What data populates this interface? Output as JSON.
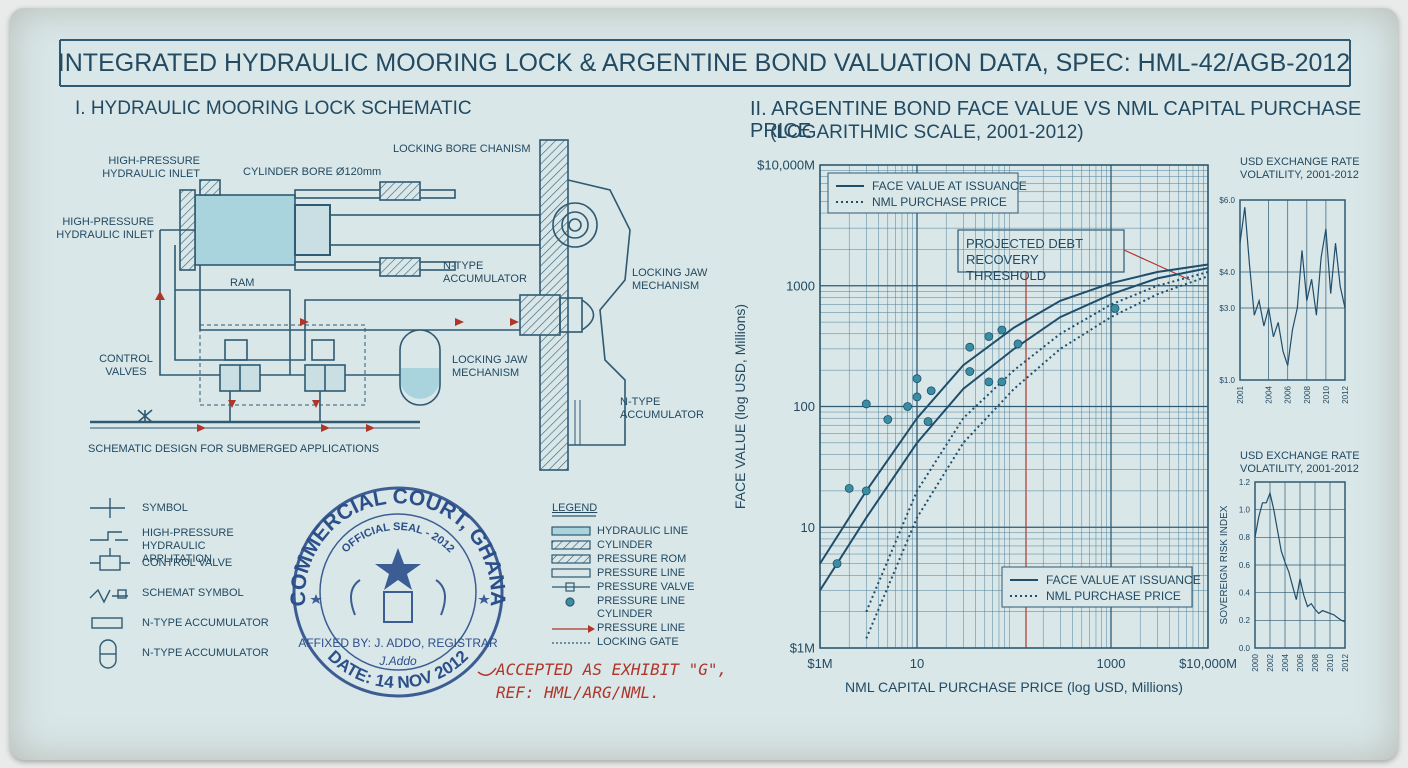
{
  "header": {
    "title": "INTEGRATED HYDRAULIC MOORING LOCK & ARGENTINE BOND VALUATION DATA, SPEC: HML-42/AGB-2012"
  },
  "schematic": {
    "heading": "I. HYDRAULIC MOORING LOCK SCHEMATIC",
    "labels": [
      "HIGH-PRESSURE HYDRAULIC INLET",
      "HIGH-PRESSURE HYDRAULIC INLET",
      "CYLINDER BORE Ø120mm",
      "LOCKING BORE CHANISM",
      "RAM",
      "N-TYPE ACCUMULATOR",
      "LOCKING JAW MECHANISM",
      "LOCKING JAW MECHANISM",
      "CONTROL VALVES",
      "N-TYPE ACCUMULATOR"
    ],
    "caption": "SCHEMATIC DESIGN FOR SUBMERGED APPLICATIONS"
  },
  "symbols": [
    "SYMBOL",
    "HIGH-PRESSURE HYDRAULIC APPLITATION",
    "CONTROL VALVE",
    "SCHEMAT SYMBOL",
    "N-TYPE ACCUMULATOR",
    "N-TYPE ACCUMULATOR"
  ],
  "legend": {
    "title": "LEGEND",
    "items": [
      "HYDRAULIC LINE",
      "CYLINDER",
      "PRESSURE ROM",
      "PRESSURE LINE",
      "PRESSURE VALVE",
      "PRESSURE LINE CYLINDER",
      "PRESSURE LINE",
      "LOCKING GATE"
    ]
  },
  "seal": {
    "ring_top": "COMMERCIAL COURT, GHANA",
    "ring_inner": "OFFICIAL SEAL - 2012",
    "affixed": "AFFIXED BY: J. ADDO, REGISTRAR",
    "signature": "J.Addo",
    "date": "DATE: 14 NOV 2012"
  },
  "exhibit_note": [
    "ACCEPTED AS EXHIBIT \"G\",",
    "REF: HML/ARG/NML."
  ],
  "section": {
    "title": "II. ARGENTINE BOND FACE VALUE VS NML CAPITAL PURCHASE PRICE",
    "subtitle": "(LOGARITHMIC SCALE, 2001-2012)"
  },
  "chart_data": [
    {
      "type": "line",
      "xlabel": "NML CAPITAL PURCHASE PRICE (log USD, Millions)",
      "ylabel": "FACE VALUE (log USD, Millions)",
      "log_x": true,
      "log_y": true,
      "grid": true,
      "minor_grid": true,
      "xlim": [
        1,
        10000
      ],
      "ylim": [
        1,
        10000
      ],
      "xticks": [
        {
          "value": 1,
          "label": "$1M"
        },
        10,
        1000,
        {
          "value": 10000,
          "label": "$10,000M"
        }
      ],
      "yticks": [
        {
          "value": 1,
          "label": "$1M"
        },
        10,
        100,
        1000,
        {
          "value": 10000,
          "label": "$10,000M"
        }
      ],
      "x": [
        1,
        3,
        10,
        30,
        100,
        300,
        1000,
        3000,
        10000
      ],
      "series": [
        {
          "name": "FACE VALUE AT ISSUANCE",
          "color": "#1f4e6b",
          "style": "solid",
          "values": [
            5,
            20,
            80,
            220,
            450,
            750,
            1050,
            1300,
            1500
          ]
        },
        {
          "name": "NML PURCHASE PRICE",
          "color": "#1f4e6b",
          "style": "dotted",
          "values": [
            null,
            2,
            20,
            80,
            200,
            400,
            700,
            1000,
            1300
          ]
        },
        {
          "name": "FACE VALUE AT ISSUANCE",
          "color": "#1f4e6b",
          "style": "solid",
          "values": [
            3,
            12,
            50,
            140,
            300,
            550,
            850,
            1150,
            1400
          ]
        },
        {
          "name": "NML PURCHASE PRICE",
          "color": "#1f4e6b",
          "style": "dotted",
          "values": [
            null,
            1.2,
            12,
            50,
            140,
            300,
            550,
            850,
            1200
          ]
        }
      ],
      "scatter": {
        "color": "#3a8ea3",
        "x": [
          1.5,
          2,
          3,
          3,
          5,
          8,
          10,
          10,
          14,
          13,
          35,
          35,
          55,
          55,
          75,
          75,
          110,
          1100
        ],
        "y": [
          5,
          21,
          105,
          20,
          78,
          100,
          170,
          120,
          135,
          75,
          195,
          310,
          380,
          160,
          430,
          160,
          330,
          650
        ]
      },
      "annotation": "PROJECTED DEBT RECOVERY THRESHOLD",
      "legend": [
        "upper left",
        "lower right"
      ]
    },
    {
      "type": "line",
      "title": "USD EXCHANGE RATE VOLATILITY, 2001-2012",
      "grid": true,
      "xlim": [
        2001,
        2012
      ],
      "ylim": [
        1,
        6
      ],
      "xticks": [
        2001,
        2004,
        2006,
        2008,
        2010,
        2012
      ],
      "yticks": [
        {
          "value": 6,
          "label": "$6.0"
        },
        {
          "value": 4,
          "label": "$4.0"
        },
        {
          "value": 3,
          "label": "$3.0"
        },
        {
          "value": 1,
          "label": "$1.0"
        }
      ],
      "color": "#1f4e6b",
      "x": [
        2001,
        2001.5,
        2002,
        2002.5,
        2003,
        2003.5,
        2004,
        2004.5,
        2005,
        2005.5,
        2006,
        2006.5,
        2007,
        2007.5,
        2008,
        2008.5,
        2009,
        2009.5,
        2010,
        2010.5,
        2011,
        2011.5,
        2012
      ],
      "values": [
        4.8,
        5.8,
        4.2,
        2.8,
        3.2,
        2.5,
        3.0,
        2.2,
        2.6,
        1.8,
        1.4,
        2.4,
        3.0,
        4.6,
        3.2,
        3.8,
        2.8,
        4.4,
        5.2,
        3.4,
        4.8,
        3.6,
        3.0
      ]
    },
    {
      "type": "line",
      "title": "USD EXCHANGE RATE VOLATILITY, 2001-2012",
      "ylabel": "SOVEREIGN RISK INDEX",
      "grid": true,
      "xlim": [
        2000,
        2012
      ],
      "ylim": [
        0,
        1.2
      ],
      "xticks": [
        2000,
        2002,
        2004,
        2006,
        2008,
        2010,
        2012
      ],
      "yticks": [
        {
          "value": 0,
          "label": "0.0"
        },
        {
          "value": 0.2,
          "label": "0.2"
        },
        {
          "value": 0.4,
          "label": "0.4"
        },
        {
          "value": 0.6,
          "label": "0.6"
        },
        {
          "value": 0.8,
          "label": "0.8"
        },
        {
          "value": 1,
          "label": "1.0"
        },
        {
          "value": 1.2,
          "label": "1.2"
        }
      ],
      "color": "#1f4e6b",
      "x": [
        2000,
        2000.5,
        2001,
        2001.5,
        2002,
        2002.5,
        2003,
        2003.5,
        2004,
        2004.5,
        2005,
        2005.5,
        2006,
        2006.5,
        2007,
        2007.5,
        2008,
        2008.5,
        2009,
        2009.5,
        2010,
        2010.5,
        2011,
        2011.5,
        2012
      ],
      "values": [
        0.8,
        0.95,
        1.05,
        1.05,
        1.12,
        1.0,
        0.85,
        0.7,
        0.62,
        0.55,
        0.45,
        0.35,
        0.5,
        0.38,
        0.3,
        0.32,
        0.28,
        0.25,
        0.27,
        0.26,
        0.25,
        0.24,
        0.22,
        0.2,
        0.19
      ]
    }
  ]
}
